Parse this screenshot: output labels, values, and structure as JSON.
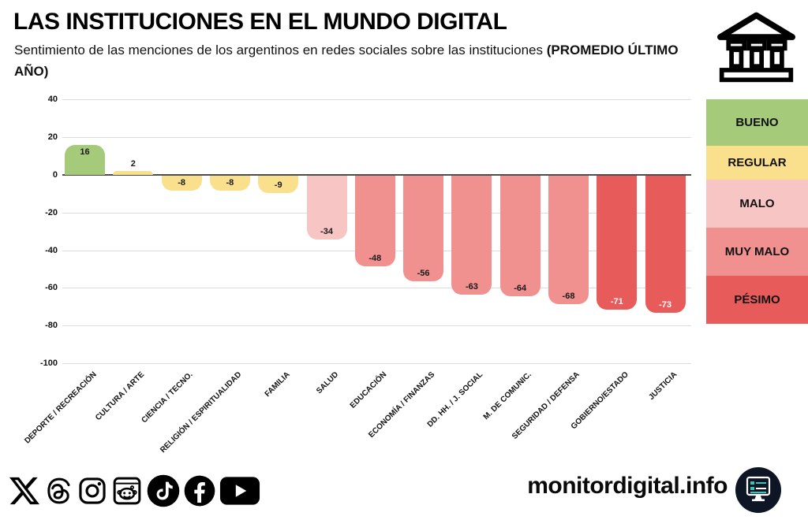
{
  "header": {
    "title": "LAS INSTITUCIONES EN EL MUNDO DIGITAL",
    "subtitle": "Sentimiento de las menciones de los argentinos en redes sociales sobre las instituciones ",
    "subtitle_bold": "(PROMEDIO ÚLTIMO AÑO)"
  },
  "chart_data": {
    "type": "bar",
    "title": "LAS INSTITUCIONES EN EL MUNDO DIGITAL",
    "categories": [
      "DEPORTE / RECREACIÓN",
      "CULTURA / ARTE",
      "CIENCIA / TECNO.",
      "RELIGIÓN / ESPIRITUALIDAD",
      "FAMILIA",
      "SALUD",
      "EDUCACIÓN",
      "ECONOMÍA / FINANZAS",
      "DD. HH. / J. SOCIAL",
      "M. DE COMUNIC.",
      "SEGURIDAD / DEFENSA",
      "GOBIERNO/ESTADO",
      "JUSTICIA"
    ],
    "values": [
      16,
      2,
      -8,
      -8,
      -9,
      -34,
      -48,
      -56,
      -63,
      -64,
      -68,
      -71,
      -73
    ],
    "bar_colors": [
      "#a4ca7a",
      "#fadf8d",
      "#fadf8d",
      "#fadf8d",
      "#fadf8d",
      "#f6c5c4",
      "#f1918f",
      "#f1918f",
      "#f1918f",
      "#f1918f",
      "#f1918f",
      "#e85b5b",
      "#e85b5b"
    ],
    "sentiments": [
      "BUENO",
      "REGULAR",
      "REGULAR",
      "REGULAR",
      "REGULAR",
      "MALO",
      "MUY MALO",
      "MUY MALO",
      "MUY MALO",
      "MUY MALO",
      "MUY MALO",
      "PÉSIMO",
      "PÉSIMO"
    ],
    "yticks": [
      40,
      20,
      0,
      -20,
      -40,
      -60,
      -80,
      -100
    ],
    "ylim": [
      -100,
      40
    ],
    "xlabel": "",
    "ylabel": "",
    "grid": true,
    "legend_position": "right"
  },
  "legend": {
    "items": [
      {
        "label": "BUENO",
        "color": "#a4ca7a"
      },
      {
        "label": "REGULAR",
        "color": "#fadf8d"
      },
      {
        "label": "MALO",
        "color": "#f6c5c4"
      },
      {
        "label": "MUY MALO",
        "color": "#f1918f"
      },
      {
        "label": "PÉSIMO",
        "color": "#e85b5b"
      }
    ]
  },
  "footer": {
    "site_label": "monitordigital.info",
    "social_icons": [
      "x-icon",
      "threads-icon",
      "instagram-icon",
      "reddit-icon",
      "tiktok-icon",
      "facebook-icon",
      "youtube-icon"
    ],
    "logo_colors": {
      "badge": "#0e1626",
      "accent": "#3fc1b7"
    }
  }
}
